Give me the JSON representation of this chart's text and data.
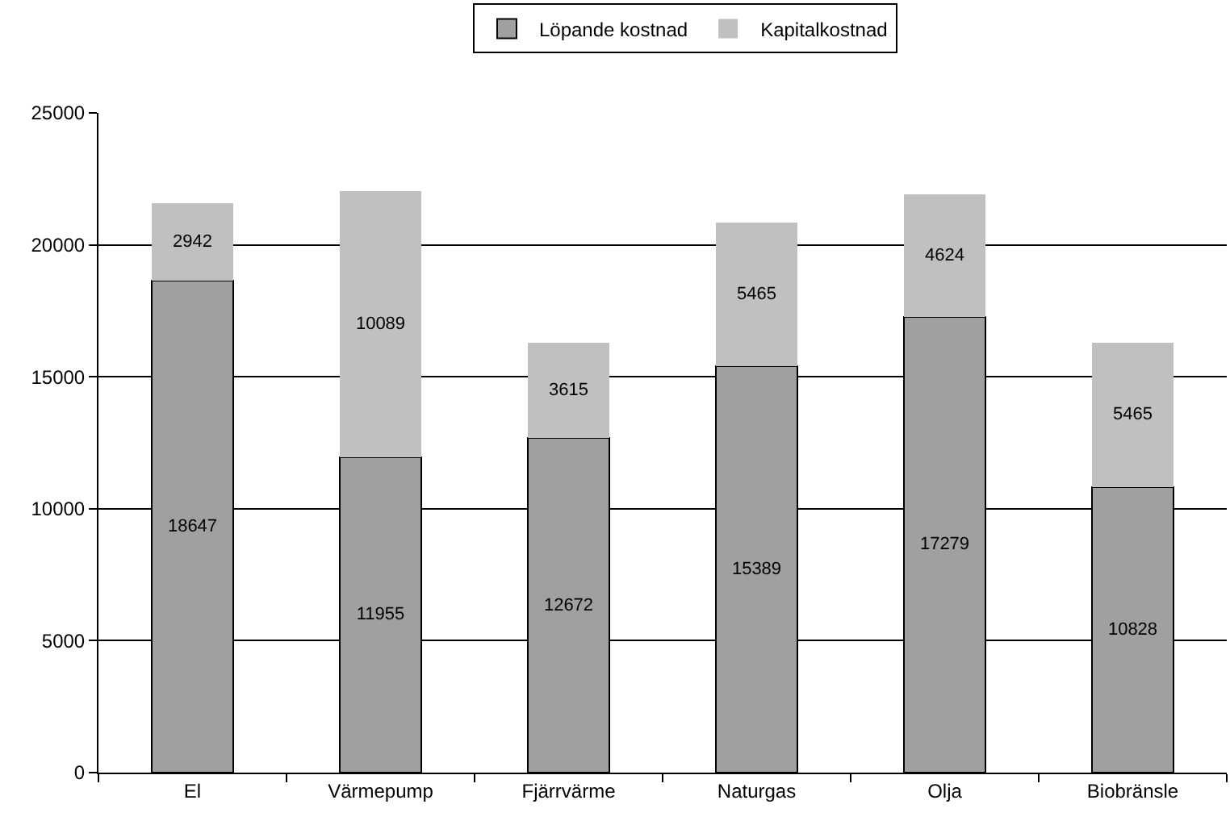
{
  "chart_data": {
    "type": "bar",
    "stacked": true,
    "categories": [
      "El",
      "Värmepump",
      "Fjärrvärme",
      "Naturgas",
      "Olja",
      "Biobränsle"
    ],
    "series": [
      {
        "name": "Löpande kostnad",
        "color": "#a0a0a0",
        "values": [
          18647,
          11955,
          12672,
          15389,
          17279,
          10828
        ]
      },
      {
        "name": "Kapitalkostnad",
        "color": "#c0c0c0",
        "values": [
          2942,
          10089,
          3615,
          5465,
          4624,
          5465
        ]
      }
    ],
    "ylim": [
      0,
      25000
    ],
    "yticks": [
      0,
      5000,
      10000,
      15000,
      20000,
      25000
    ],
    "grid": "y",
    "legend": "top",
    "data_labels": true
  }
}
